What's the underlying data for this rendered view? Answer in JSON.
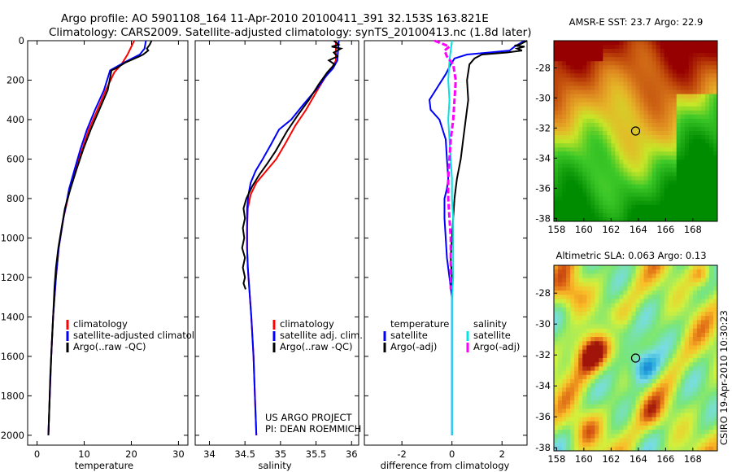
{
  "header": {
    "line1": "Argo profile: AO 5901108_164 11-Apr-2010 20100411_391 32.153S 163.821E",
    "line2": "Climatology: CARS2009. Satellite-adjusted climatology: synTS_20100413.nc (1.8d later)"
  },
  "side_label": "CSIRO 19-Apr-2010 10:30:23",
  "project_credit": [
    "US ARGO PROJECT",
    "PI: DEAN ROEMMICH"
  ],
  "colors": {
    "climatology": "#ff0000",
    "satellite": "#0000ff",
    "argo": "#000000",
    "sat_diff": "#00e5e5",
    "argo_adj": "#ff00ff"
  },
  "chart_data": [
    {
      "type": "line",
      "xlabel": "temperature",
      "xlim": [
        -2,
        32
      ],
      "xticks": [
        0,
        10,
        20,
        30
      ],
      "ylim": [
        2050,
        0
      ],
      "yticks": [
        0,
        200,
        400,
        600,
        800,
        1000,
        1200,
        1400,
        1600,
        1800,
        2000
      ],
      "legend": [
        "climatology",
        "satellite-adjusted climatology",
        "Argo(..raw -QC)"
      ],
      "series": [
        {
          "name": "climatology",
          "color": "#ff0000",
          "points": [
            [
              20.6,
              0
            ],
            [
              20.0,
              30
            ],
            [
              19.2,
              70
            ],
            [
              17.9,
              120
            ],
            [
              16.4,
              160
            ],
            [
              14.6,
              250
            ],
            [
              12.8,
              350
            ],
            [
              11.0,
              450
            ],
            [
              9.6,
              550
            ],
            [
              8.2,
              650
            ],
            [
              7.0,
              750
            ],
            [
              5.6,
              900
            ],
            [
              4.6,
              1050
            ],
            [
              4.0,
              1200
            ],
            [
              3.4,
              1400
            ],
            [
              3.0,
              1600
            ],
            [
              2.7,
              1800
            ],
            [
              2.4,
              2000
            ]
          ]
        },
        {
          "name": "satellite-adjusted climatology",
          "color": "#0000ff",
          "points": [
            [
              23.1,
              0
            ],
            [
              22.8,
              40
            ],
            [
              21.8,
              70
            ],
            [
              18.5,
              110
            ],
            [
              15.5,
              150
            ],
            [
              14.2,
              250
            ],
            [
              12.3,
              350
            ],
            [
              10.6,
              450
            ],
            [
              9.2,
              550
            ],
            [
              8.0,
              650
            ],
            [
              6.8,
              750
            ],
            [
              5.6,
              900
            ],
            [
              4.6,
              1050
            ],
            [
              4.0,
              1200
            ],
            [
              3.4,
              1400
            ],
            [
              3.0,
              1600
            ],
            [
              2.7,
              1800
            ],
            [
              2.4,
              2000
            ]
          ]
        },
        {
          "name": "Argo(..raw -QC)",
          "color": "#000000",
          "points": [
            [
              24.3,
              0
            ],
            [
              23.9,
              20
            ],
            [
              23.3,
              40
            ],
            [
              23.6,
              50
            ],
            [
              22.5,
              70
            ],
            [
              21.7,
              80
            ],
            [
              18.8,
              110
            ],
            [
              16.8,
              140
            ],
            [
              15.8,
              150
            ],
            [
              15.0,
              250
            ],
            [
              13.2,
              350
            ],
            [
              11.4,
              450
            ],
            [
              9.8,
              550
            ],
            [
              8.4,
              650
            ],
            [
              7.1,
              750
            ],
            [
              5.9,
              850
            ],
            [
              5.2,
              950
            ],
            [
              4.5,
              1050
            ],
            [
              4.0,
              1150
            ],
            [
              3.7,
              1250
            ],
            [
              3.4,
              1400
            ],
            [
              3.1,
              1550
            ],
            [
              2.8,
              1700
            ],
            [
              2.6,
              1850
            ],
            [
              2.4,
              2000
            ]
          ]
        }
      ]
    },
    {
      "type": "line",
      "xlabel": "salinity",
      "xlim": [
        33.8,
        36.1
      ],
      "xticks": [
        34,
        34.5,
        35,
        35.5,
        36
      ],
      "ylim": [
        2050,
        0
      ],
      "legend": [
        "climatology",
        "satellite adj. clim.",
        "Argo(..raw -QC)"
      ],
      "series": [
        {
          "name": "climatology",
          "color": "#ff0000",
          "points": [
            [
              35.78,
              0
            ],
            [
              35.78,
              100
            ],
            [
              35.72,
              140
            ],
            [
              35.62,
              190
            ],
            [
              35.52,
              250
            ],
            [
              35.36,
              350
            ],
            [
              35.21,
              430
            ],
            [
              35.07,
              520
            ],
            [
              34.94,
              600
            ],
            [
              34.8,
              660
            ],
            [
              34.66,
              720
            ],
            [
              34.58,
              780
            ],
            [
              34.54,
              850
            ],
            [
              34.53,
              950
            ],
            [
              34.53,
              1050
            ],
            [
              34.54,
              1150
            ],
            [
              34.56,
              1250
            ],
            [
              34.59,
              1400
            ],
            [
              34.62,
              1600
            ],
            [
              34.64,
              1800
            ],
            [
              34.66,
              2000
            ]
          ]
        },
        {
          "name": "satellite adj. clim.",
          "color": "#0000ff",
          "points": [
            [
              35.82,
              0
            ],
            [
              35.8,
              100
            ],
            [
              35.74,
              140
            ],
            [
              35.64,
              180
            ],
            [
              35.52,
              240
            ],
            [
              35.33,
              320
            ],
            [
              35.15,
              400
            ],
            [
              34.98,
              450
            ],
            [
              34.86,
              530
            ],
            [
              34.75,
              600
            ],
            [
              34.65,
              660
            ],
            [
              34.58,
              720
            ],
            [
              34.55,
              780
            ],
            [
              34.53,
              850
            ],
            [
              34.53,
              950
            ],
            [
              34.53,
              1050
            ],
            [
              34.54,
              1150
            ],
            [
              34.56,
              1250
            ],
            [
              34.59,
              1400
            ],
            [
              34.62,
              1600
            ],
            [
              34.64,
              1800
            ],
            [
              34.66,
              2000
            ]
          ]
        },
        {
          "name": "Argo(..raw -QC)",
          "color": "#000000",
          "points": [
            [
              35.75,
              0
            ],
            [
              35.82,
              20
            ],
            [
              35.72,
              30
            ],
            [
              35.85,
              40
            ],
            [
              35.75,
              60
            ],
            [
              35.8,
              80
            ],
            [
              35.68,
              100
            ],
            [
              35.76,
              120
            ],
            [
              35.66,
              160
            ],
            [
              35.54,
              220
            ],
            [
              35.4,
              300
            ],
            [
              35.24,
              380
            ],
            [
              35.09,
              460
            ],
            [
              34.93,
              560
            ],
            [
              34.82,
              620
            ],
            [
              34.7,
              680
            ],
            [
              34.6,
              740
            ],
            [
              34.52,
              800
            ],
            [
              34.48,
              850
            ],
            [
              34.5,
              900
            ],
            [
              34.47,
              950
            ],
            [
              34.49,
              1000
            ],
            [
              34.46,
              1050
            ],
            [
              34.5,
              1100
            ],
            [
              34.47,
              1150
            ],
            [
              34.5,
              1200
            ],
            [
              34.48,
              1230
            ],
            [
              34.51,
              1260
            ]
          ]
        }
      ]
    },
    {
      "type": "line",
      "xlabel": "difference from climatology",
      "xlim": [
        -3.5,
        3.0
      ],
      "xticks": [
        -2,
        0,
        2
      ],
      "ylim": [
        2050,
        0
      ],
      "legend": {
        "temperature": [
          "satellite",
          "Argo(-adj)"
        ],
        "salinity": [
          "satellite",
          "Argo(-adj)"
        ]
      },
      "series": [
        {
          "name": "temperature satellite",
          "color": "#0000ff",
          "points": [
            [
              2.9,
              0
            ],
            [
              2.5,
              30
            ],
            [
              2.3,
              50
            ],
            [
              1.5,
              60
            ],
            [
              0.6,
              70
            ],
            [
              0.1,
              90
            ],
            [
              -0.05,
              120
            ],
            [
              -0.25,
              170
            ],
            [
              -0.65,
              250
            ],
            [
              -0.9,
              300
            ],
            [
              -0.85,
              350
            ],
            [
              -0.5,
              400
            ],
            [
              -0.25,
              500
            ],
            [
              -0.2,
              600
            ],
            [
              -0.15,
              700
            ],
            [
              -0.2,
              750
            ],
            [
              -0.3,
              800
            ],
            [
              -0.3,
              900
            ],
            [
              -0.25,
              1000
            ],
            [
              -0.2,
              1100
            ],
            [
              -0.1,
              1200
            ],
            [
              0.0,
              1300
            ],
            [
              0.0,
              1600
            ],
            [
              0.0,
              2000
            ]
          ]
        },
        {
          "name": "temperature Argo(-adj)",
          "color": "#000000",
          "points": [
            [
              3.0,
              0
            ],
            [
              2.7,
              20
            ],
            [
              2.5,
              25
            ],
            [
              2.9,
              30
            ],
            [
              2.6,
              40
            ],
            [
              2.8,
              50
            ],
            [
              2.2,
              60
            ],
            [
              1.2,
              70
            ],
            [
              0.9,
              90
            ],
            [
              0.7,
              120
            ],
            [
              0.6,
              200
            ],
            [
              0.65,
              300
            ],
            [
              0.55,
              400
            ],
            [
              0.45,
              500
            ],
            [
              0.35,
              600
            ],
            [
              0.2,
              700
            ],
            [
              0.1,
              800
            ],
            [
              0.05,
              900
            ],
            [
              0.0,
              1000
            ],
            [
              -0.05,
              1100
            ],
            [
              0.0,
              1200
            ],
            [
              0.0,
              1300
            ]
          ]
        },
        {
          "name": "salinity satellite",
          "color": "#00e5e5",
          "points": [
            [
              0.0,
              0
            ],
            [
              -0.05,
              50
            ],
            [
              -0.1,
              100
            ],
            [
              -0.15,
              200
            ],
            [
              -0.1,
              300
            ],
            [
              -0.15,
              400
            ],
            [
              -0.1,
              500
            ],
            [
              -0.05,
              600
            ],
            [
              0.0,
              700
            ],
            [
              0.0,
              800
            ],
            [
              0.05,
              900
            ],
            [
              0.05,
              1000
            ],
            [
              0.05,
              1100
            ],
            [
              0.05,
              1200
            ],
            [
              0.0,
              1300
            ],
            [
              0.0,
              1600
            ],
            [
              0.0,
              2000
            ]
          ]
        },
        {
          "name": "salinity Argo(-adj)",
          "color": "#ff00ff",
          "points": [
            [
              -0.7,
              0
            ],
            [
              -0.4,
              15
            ],
            [
              -0.1,
              30
            ],
            [
              -0.3,
              50
            ],
            [
              -0.2,
              80
            ],
            [
              0.05,
              120
            ],
            [
              0.15,
              200
            ],
            [
              0.1,
              300
            ],
            [
              0.05,
              400
            ],
            [
              -0.05,
              500
            ],
            [
              -0.1,
              600
            ],
            [
              -0.15,
              700
            ],
            [
              -0.15,
              800
            ],
            [
              -0.1,
              900
            ],
            [
              -0.05,
              1000
            ],
            [
              -0.05,
              1100
            ],
            [
              -0.05,
              1200
            ],
            [
              -0.05,
              1260
            ]
          ]
        }
      ]
    }
  ],
  "maps": [
    {
      "title": "AMSR-E SST: 23.7 Argo: 22.9",
      "xticks": [
        "158",
        "160",
        "162",
        "164",
        "166",
        "168"
      ],
      "yticks": [
        "-28",
        "-30",
        "-32",
        "-34",
        "-36",
        "-38"
      ],
      "marker": {
        "lon": 163.8,
        "lat": -32.2
      }
    },
    {
      "title": "Altimetric SLA: 0.063 Argo: 0.13",
      "xticks": [
        "158",
        "160",
        "162",
        "164",
        "166",
        "168"
      ],
      "yticks": [
        "-28",
        "-30",
        "-32",
        "-34",
        "-36",
        "-38"
      ],
      "marker": {
        "lon": 163.8,
        "lat": -32.2
      }
    }
  ]
}
